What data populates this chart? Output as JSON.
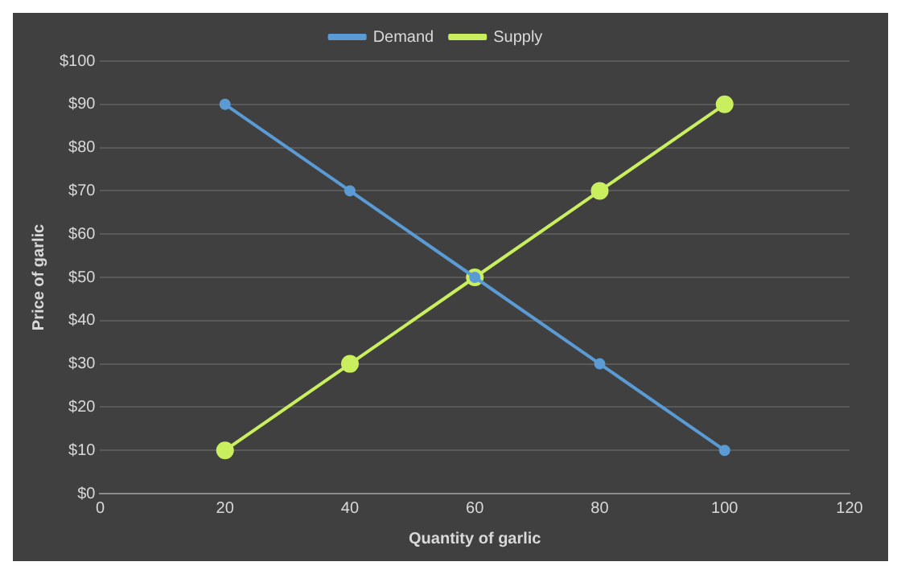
{
  "chart_data": {
    "type": "line",
    "xlabel": "Quantity of garlic",
    "ylabel": "Price of garlic",
    "x": [
      20,
      40,
      60,
      80,
      100
    ],
    "series": [
      {
        "name": "Demand",
        "color": "#5b9bd5",
        "values": [
          90,
          70,
          50,
          30,
          10
        ]
      },
      {
        "name": "Supply",
        "color": "#c9ef5f",
        "values": [
          10,
          30,
          50,
          70,
          90
        ]
      }
    ],
    "xlim": [
      0,
      120
    ],
    "xticks": [
      0,
      20,
      40,
      60,
      80,
      100,
      120
    ],
    "ylim": [
      0,
      100
    ],
    "yticks": [
      {
        "value": 0,
        "label": "$0"
      },
      {
        "value": 10,
        "label": "$10"
      },
      {
        "value": 20,
        "label": "$20"
      },
      {
        "value": 30,
        "label": "$30"
      },
      {
        "value": 40,
        "label": "$40"
      },
      {
        "value": 50,
        "label": "$50"
      },
      {
        "value": 60,
        "label": "$60"
      },
      {
        "value": 70,
        "label": "$70"
      },
      {
        "value": 80,
        "label": "$80"
      },
      {
        "value": 90,
        "label": "$90"
      },
      {
        "value": 100,
        "label": "$100"
      }
    ],
    "grid": "y",
    "legend": "top",
    "marker": "circle",
    "line_style": "solid"
  }
}
